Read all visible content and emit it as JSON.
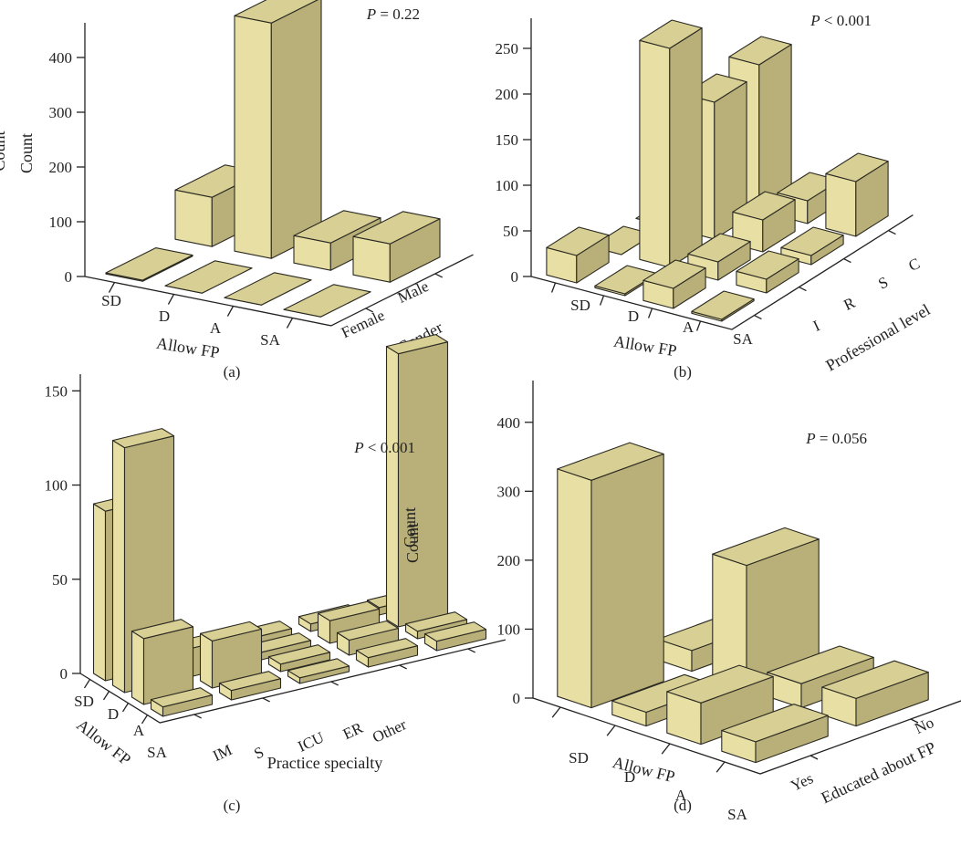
{
  "colors": {
    "bar_front": "#e8dfa5",
    "bar_side": "#b9af78",
    "bar_top": "#d8cf94",
    "outline": "#2b2a22"
  },
  "chart_data": [
    {
      "panel": "(a)",
      "type": "bar",
      "style": "3d",
      "annotation_p": "P",
      "annotation_rest": " = 0.22",
      "ylabel": "Count",
      "xlabel": "Allow FP",
      "zlabel": "Gender",
      "ylim": [
        0,
        450
      ],
      "yticks": [
        0,
        100,
        200,
        300,
        400
      ],
      "categories": [
        "SD",
        "D",
        "A",
        "SA"
      ],
      "series": [
        {
          "name": "Female",
          "values": [
            2,
            0,
            0,
            0
          ]
        },
        {
          "name": "Male",
          "values": [
            90,
            430,
            50,
            70
          ]
        }
      ]
    },
    {
      "panel": "(b)",
      "type": "bar",
      "style": "3d",
      "annotation_p": "P",
      "annotation_rest": " < 0.001",
      "ylabel": "Count",
      "xlabel": "Allow FP",
      "zlabel": "Professional level",
      "ylim": [
        0,
        275
      ],
      "yticks": [
        0,
        50,
        100,
        150,
        200,
        250
      ],
      "categories": [
        "SD",
        "D",
        "A",
        "SA"
      ],
      "series": [
        {
          "name": "I",
          "values": [
            30,
            2,
            22,
            2
          ]
        },
        {
          "name": "R",
          "values": [
            0,
            240,
            20,
            15
          ]
        },
        {
          "name": "S",
          "values": [
            0,
            150,
            35,
            10
          ]
        },
        {
          "name": "C",
          "values": [
            0,
            160,
            25,
            60
          ]
        }
      ]
    },
    {
      "panel": "(c)",
      "type": "bar",
      "style": "3d",
      "annotation_p": "P",
      "annotation_rest": " < 0.001",
      "ylabel": "Count",
      "xlabel": "Allow FP",
      "zlabel": "Practice specialty",
      "ylim": [
        0,
        155
      ],
      "yticks": [
        0,
        50,
        100,
        150
      ],
      "categories": [
        "SD",
        "D",
        "A",
        "SA"
      ],
      "series": [
        {
          "name": "IM",
          "values": [
            90,
            130,
            35,
            5
          ]
        },
        {
          "name": "S",
          "values": [
            5,
            15,
            25,
            5
          ]
        },
        {
          "name": "ICU",
          "values": [
            4,
            4,
            4,
            3
          ]
        },
        {
          "name": "ER",
          "values": [
            4,
            12,
            8,
            5
          ]
        },
        {
          "name": "Other",
          "values": [
            4,
            145,
            4,
            5
          ]
        }
      ]
    },
    {
      "panel": "(d)",
      "type": "bar",
      "style": "3d",
      "annotation_p": "P",
      "annotation_rest": " = 0.056",
      "ylabel": "Count",
      "xlabel": "Allow FP",
      "zlabel": "Educated about FP",
      "ylim": [
        0,
        450
      ],
      "yticks": [
        0,
        100,
        200,
        300,
        400
      ],
      "categories": [
        "SD",
        "D",
        "A",
        "SA"
      ],
      "series": [
        {
          "name": "Yes",
          "values": [
            330,
            20,
            60,
            30
          ]
        },
        {
          "name": "No",
          "values": [
            30,
            180,
            35,
            40
          ]
        }
      ]
    }
  ]
}
